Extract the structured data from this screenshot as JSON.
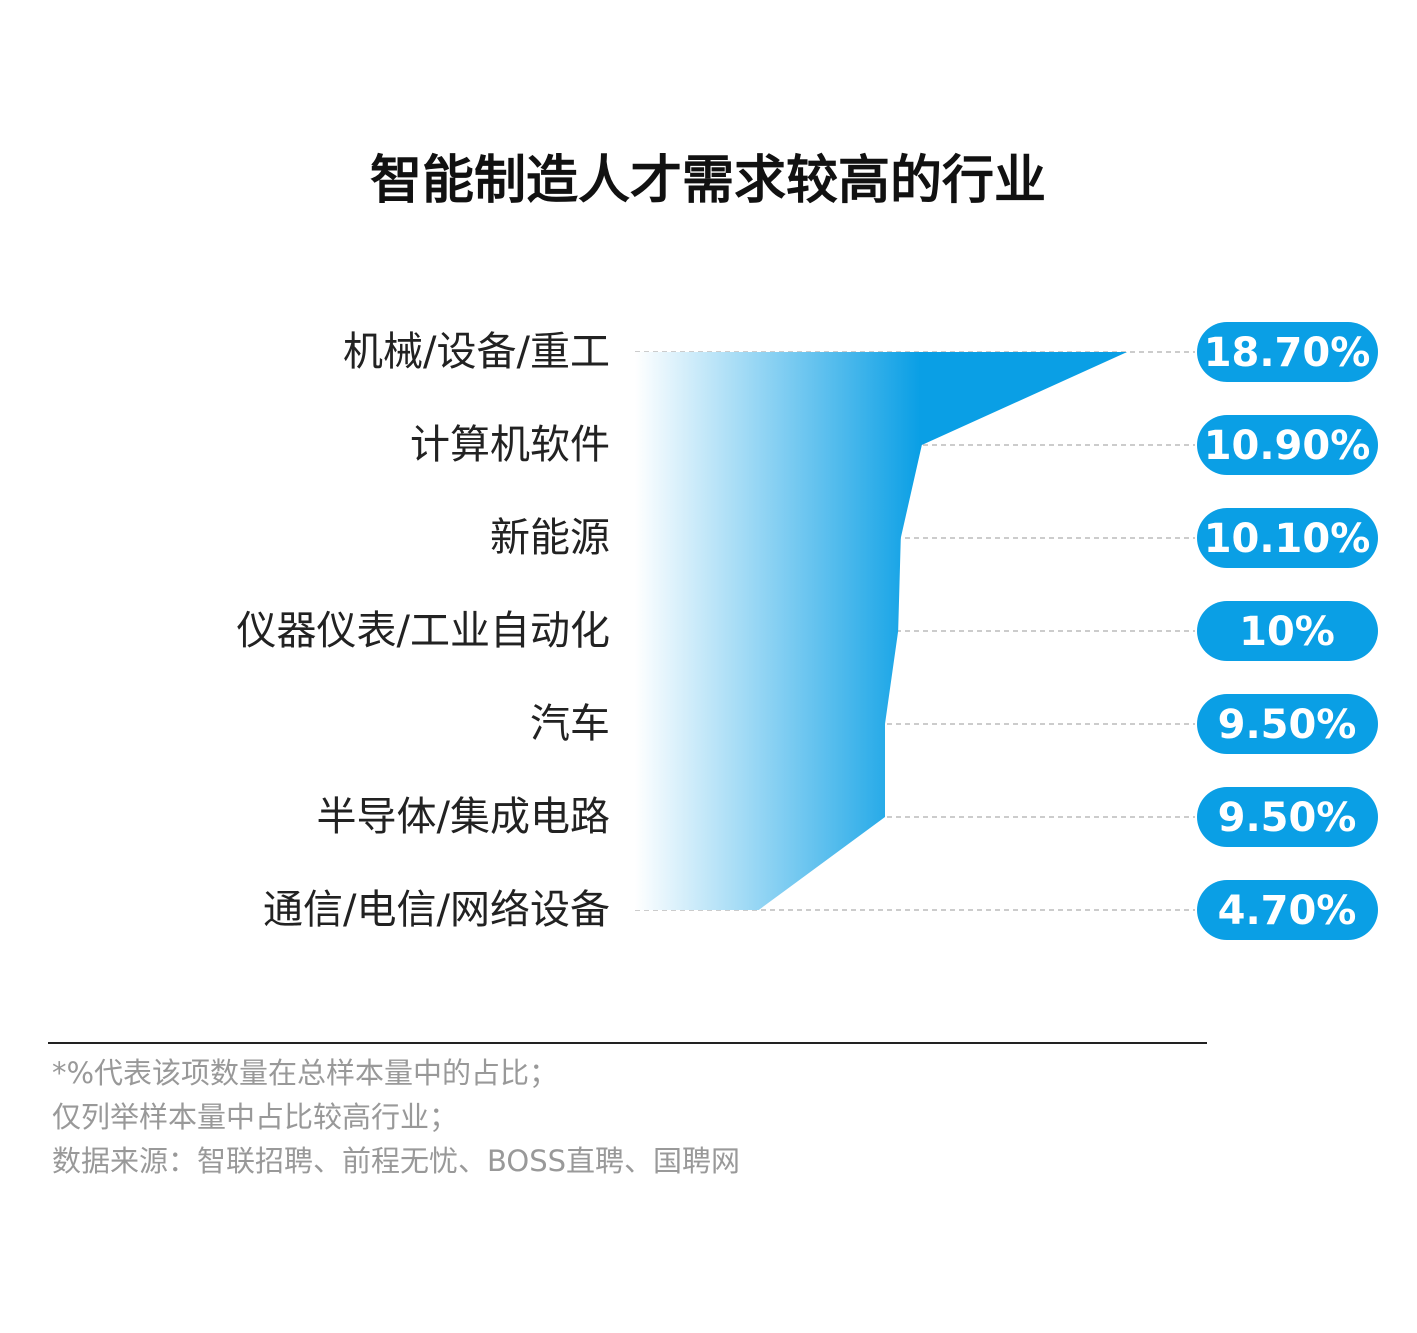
{
  "chart_data": {
    "type": "area",
    "title": "智能制造人才需求较高的行业",
    "categories": [
      "机械/设备/重工",
      "计算机软件",
      "新能源",
      "仪器仪表/工业自动化",
      "汽车",
      "半导体/集成电路",
      "通信/电信/网络设备"
    ],
    "values": [
      18.7,
      10.9,
      10.1,
      10,
      9.5,
      9.5,
      4.7
    ],
    "value_labels": [
      "18.70%",
      "10.90%",
      "10.10%",
      "10%",
      "9.50%",
      "9.50%",
      "4.70%"
    ],
    "color": "#0a9fe5",
    "xlim": [
      0,
      19
    ],
    "notes": [
      "*%代表该项数量在总样本量中的占比；",
      "仅列举样本量中占比较高行业；",
      "数据来源：智联招聘、前程无忧、BOSS直聘、国聘网"
    ]
  }
}
